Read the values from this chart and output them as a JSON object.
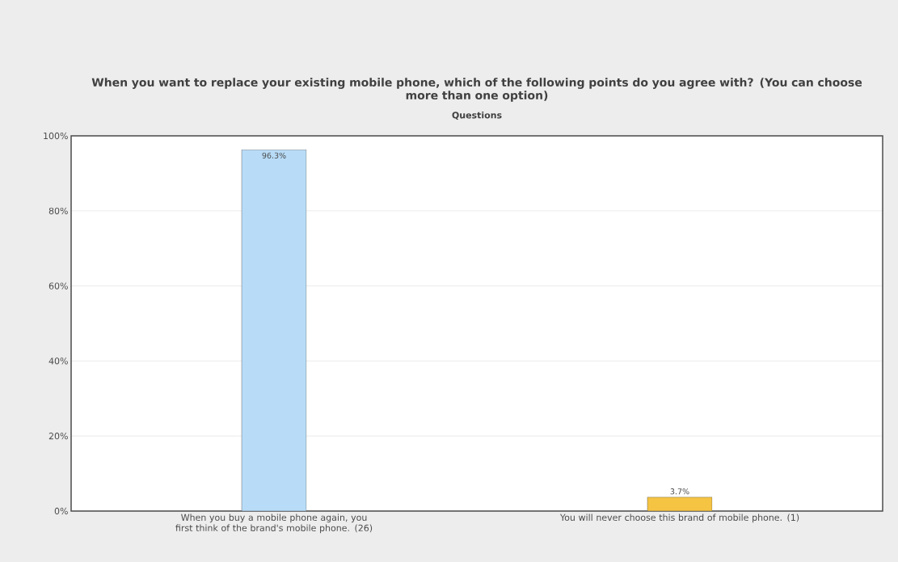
{
  "chart_data": {
    "type": "bar",
    "title": "When you want to replace your existing mobile phone, which of the following points do you agree with? (You can choose more than one option)",
    "subtitle": "Questions",
    "categories": [
      "When you buy a mobile phone again, you first think of the brand's mobile phone. (26)",
      "You will never choose this brand of mobile phone. (1)"
    ],
    "values": [
      96.3,
      3.7
    ],
    "colors": [
      "#b8dcf7",
      "#f5c443"
    ],
    "value_labels": [
      "96.3%",
      "3.7%"
    ],
    "ylim": [
      0,
      100
    ],
    "yticks": [
      {
        "value": 0,
        "label": "0%"
      },
      {
        "value": 20,
        "label": "20%"
      },
      {
        "value": 40,
        "label": "40%"
      },
      {
        "value": 60,
        "label": "60%"
      },
      {
        "value": 80,
        "label": "80%"
      },
      {
        "value": 100,
        "label": "100%"
      }
    ],
    "grid": "y"
  }
}
